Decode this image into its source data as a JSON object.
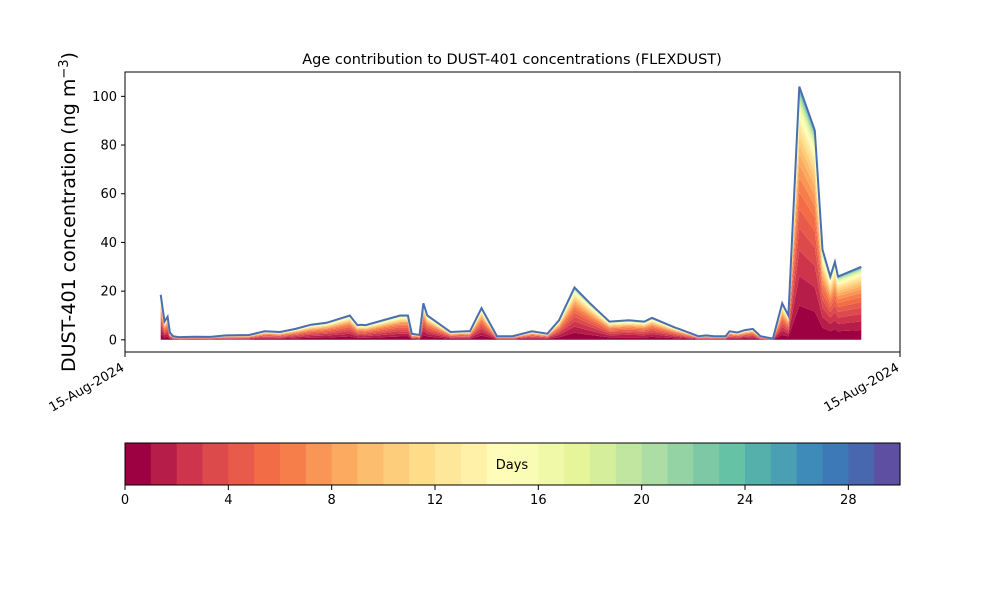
{
  "chart_data": {
    "type": "area",
    "title": "Age contribution to DUST-401 concentrations (FLEXDUST)",
    "ylabel": "DUST-401 concentration (ng m⁻³)",
    "ylabel_base": "DUST-401 concentration (ng m",
    "ylabel_sup": "−3",
    "ylabel_close": ")",
    "xlabel": "",
    "ylim": [
      -5,
      110
    ],
    "yticks": [
      0,
      20,
      40,
      60,
      80,
      100
    ],
    "xlim": [
      0,
      1
    ],
    "xticks": [
      {
        "pos": 0,
        "label": "15-Aug-2024"
      },
      {
        "pos": 1,
        "label": "15-Aug-2024"
      }
    ],
    "x": [
      0.046,
      0.051,
      0.055,
      0.058,
      0.062,
      0.066,
      0.07,
      0.09,
      0.11,
      0.13,
      0.16,
      0.18,
      0.2,
      0.22,
      0.24,
      0.26,
      0.29,
      0.3,
      0.305,
      0.31,
      0.355,
      0.365,
      0.37,
      0.38,
      0.385,
      0.39,
      0.42,
      0.44,
      0.445,
      0.46,
      0.48,
      0.5,
      0.525,
      0.545,
      0.56,
      0.58,
      0.6,
      0.625,
      0.65,
      0.67,
      0.68,
      0.71,
      0.715,
      0.74,
      0.75,
      0.76,
      0.775,
      0.78,
      0.79,
      0.8,
      0.81,
      0.82,
      0.836,
      0.848,
      0.856,
      0.87,
      0.89,
      0.9,
      0.91,
      0.916,
      0.92,
      0.95
    ],
    "totals": [
      18.5,
      7.5,
      9.5,
      3,
      1.5,
      1.3,
      1.1,
      1.3,
      1.2,
      1.8,
      2.0,
      3.5,
      3.2,
      4.5,
      6.2,
      7.0,
      10,
      6.0,
      6.2,
      6.0,
      10,
      10,
      2.5,
      2.0,
      15,
      10,
      3.2,
      3.5,
      3.5,
      13,
      1.5,
      1.5,
      3.5,
      2.5,
      8.0,
      21.5,
      15,
      7.5,
      8.0,
      7.5,
      9.0,
      5.0,
      4.5,
      1.5,
      1.8,
      1.5,
      1.5,
      3.5,
      3.0,
      4.0,
      4.5,
      1.5,
      0.5,
      15,
      10,
      104,
      86,
      37,
      26,
      32,
      26,
      30
    ],
    "series_note": "30 age classes (0-30 days), stacked; colors follow colorbar",
    "colorbar": {
      "label": "Days",
      "min": 0,
      "max": 30,
      "ticks": [
        0,
        4,
        8,
        12,
        16,
        20,
        24,
        28
      ],
      "colors": [
        "#9e0142",
        "#b61d48",
        "#ce354c",
        "#dd4a4c",
        "#e85b4a",
        "#f26c45",
        "#f67e4b",
        "#f99555",
        "#fcaa5f",
        "#fdbd6f",
        "#fdcd7b",
        "#fedc88",
        "#fee799",
        "#fff1a8",
        "#fffbb8",
        "#f9fcb5",
        "#f0f9a8",
        "#e6f598",
        "#d5ee9b",
        "#c1e6a0",
        "#abdda4",
        "#94d3a4",
        "#7dc9a6",
        "#66c2a5",
        "#55b0ab",
        "#4a9fb2",
        "#3e8bba",
        "#3c79b6",
        "#4867ae",
        "#5e4fa2"
      ]
    }
  }
}
